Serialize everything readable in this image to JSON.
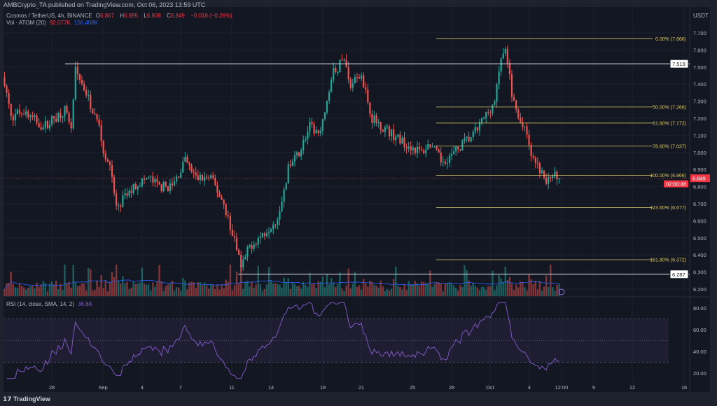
{
  "header": {
    "published": "AMBCrypto_TA published on TradingView.com, Oct 06, 2023 13:59 UTC"
  },
  "legend": {
    "symbol": "Cosmos / TetherUS, 4h, BINANCE",
    "open_label": "O",
    "open": "6.867",
    "high_label": "H",
    "high": "6.895",
    "low_label": "L",
    "low": "6.808",
    "close_label": "C",
    "close": "6.849",
    "change": "−0.018 (−0.26%)",
    "vol_label": "Vol · ATOM (20)",
    "vol_value": "92.077K",
    "vol_sma": "156.408K",
    "rsi_label": "RSI (14, close, SMA, 14, 2)",
    "rsi_value": "36.88"
  },
  "currency": "USDT",
  "footer": {
    "logo": "TradingView"
  },
  "colors": {
    "up": "#26a69a",
    "down": "#ef5350",
    "fib": "#d8c86a",
    "rsi": "#7e57c2",
    "bg": "#131722"
  },
  "chart_data": {
    "type": "candlestick",
    "timeframe": "4h",
    "price_axis": {
      "ticks": [
        "7.700",
        "7.600",
        "7.500",
        "7.400",
        "7.300",
        "7.200",
        "7.100",
        "7.000",
        "6.900",
        "6.800",
        "6.700",
        "6.600",
        "6.500",
        "6.400",
        "6.300",
        "6.200"
      ],
      "range": [
        6.2,
        7.7
      ]
    },
    "rsi_axis": {
      "ticks": [
        "80.00",
        "60.00",
        "40.00",
        "20.00"
      ],
      "band": [
        30,
        70
      ],
      "mid": 50
    },
    "time_ticks": [
      "28",
      "Sep",
      "4",
      "7",
      "11",
      "14",
      "18",
      "21",
      "25",
      "28",
      "Oct",
      "4",
      "12:00",
      "9",
      "12",
      "16"
    ],
    "price_path": [
      [
        0,
        7.42
      ],
      [
        3,
        7.2
      ],
      [
        8,
        7.25
      ],
      [
        13,
        7.2
      ],
      [
        18,
        7.15
      ],
      [
        23,
        7.2
      ],
      [
        28,
        7.25
      ],
      [
        31,
        7.15
      ],
      [
        33,
        7.48
      ],
      [
        38,
        7.35
      ],
      [
        41,
        7.25
      ],
      [
        44,
        7.15
      ],
      [
        47,
        6.95
      ],
      [
        49,
        6.95
      ],
      [
        52,
        6.68
      ],
      [
        57,
        6.75
      ],
      [
        62,
        6.82
      ],
      [
        67,
        6.85
      ],
      [
        72,
        6.8
      ],
      [
        78,
        6.8
      ],
      [
        84,
        6.95
      ],
      [
        89,
        6.85
      ],
      [
        96,
        6.85
      ],
      [
        102,
        6.7
      ],
      [
        107,
        6.48
      ],
      [
        110,
        6.32
      ],
      [
        114,
        6.45
      ],
      [
        120,
        6.52
      ],
      [
        127,
        6.62
      ],
      [
        132,
        6.9
      ],
      [
        137,
        7.0
      ],
      [
        142,
        7.15
      ],
      [
        147,
        7.1
      ],
      [
        152,
        7.45
      ],
      [
        158,
        7.55
      ],
      [
        161,
        7.4
      ],
      [
        166,
        7.45
      ],
      [
        171,
        7.2
      ],
      [
        176,
        7.15
      ],
      [
        181,
        7.1
      ],
      [
        187,
        7.05
      ],
      [
        194,
        7.0
      ],
      [
        198,
        7.05
      ],
      [
        203,
        6.95
      ],
      [
        208,
        6.98
      ],
      [
        213,
        7.05
      ],
      [
        218,
        7.1
      ],
      [
        223,
        7.2
      ],
      [
        228,
        7.3
      ],
      [
        231,
        7.55
      ],
      [
        233,
        7.6
      ],
      [
        236,
        7.35
      ],
      [
        239,
        7.2
      ],
      [
        243,
        7.1
      ],
      [
        246,
        6.95
      ],
      [
        249,
        6.9
      ],
      [
        252,
        6.82
      ],
      [
        255,
        6.88
      ],
      [
        258,
        6.849
      ]
    ],
    "horizontal_levels": [
      {
        "label": "7.519",
        "price": 7.519
      },
      {
        "label": "6.287",
        "price": 6.287
      }
    ],
    "current_price": {
      "label": "6.849",
      "countdown": "02:00:46",
      "price": 6.849
    },
    "fib_levels": [
      {
        "label": "0.00% (7.666)",
        "price": 7.666
      },
      {
        "label": "50.00% (7.266)",
        "price": 7.266
      },
      {
        "label": "61.80% (7.172)",
        "price": 7.172
      },
      {
        "label": "78.60% (7.037)",
        "price": 7.037
      },
      {
        "label": "100.00% (6.866)",
        "price": 6.866
      },
      {
        "label": "123.60% (6.677)",
        "price": 6.677
      },
      {
        "label": "161.80% (6.372)",
        "price": 6.372
      }
    ]
  }
}
